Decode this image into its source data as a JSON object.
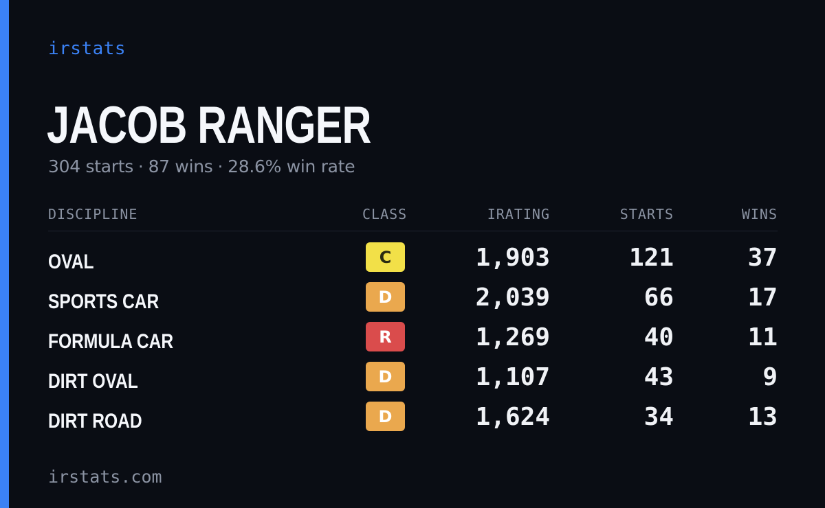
{
  "brand": "irstats",
  "player": {
    "name": "JACOB RANGER",
    "starts_text": "304 starts",
    "wins_text": "87 wins",
    "winrate_text": "28.6% win rate",
    "separator": "·"
  },
  "table": {
    "headers": {
      "discipline": "DISCIPLINE",
      "class": "CLASS",
      "irating": "IRATING",
      "starts": "STARTS",
      "wins": "WINS"
    },
    "rows": [
      {
        "discipline": "OVAL",
        "class": "C",
        "irating": "1,903",
        "starts": "121",
        "wins": "37"
      },
      {
        "discipline": "SPORTS CAR",
        "class": "D",
        "irating": "2,039",
        "starts": "66",
        "wins": "17"
      },
      {
        "discipline": "FORMULA CAR",
        "class": "R",
        "irating": "1,269",
        "starts": "40",
        "wins": "11"
      },
      {
        "discipline": "DIRT OVAL",
        "class": "D",
        "irating": "1,107",
        "starts": "43",
        "wins": "9"
      },
      {
        "discipline": "DIRT ROAD",
        "class": "D",
        "irating": "1,624",
        "starts": "34",
        "wins": "13"
      }
    ]
  },
  "class_colors": {
    "C": {
      "bg": "#f2e048",
      "fg": "#2a2a12"
    },
    "D": {
      "bg": "#eaa84e",
      "fg": "#ffffff"
    },
    "R": {
      "bg": "#da4c4c",
      "fg": "#ffffff"
    }
  },
  "colors": {
    "accent": "#3b82f6",
    "background": "#0a0d14"
  },
  "footer": "irstats.com"
}
